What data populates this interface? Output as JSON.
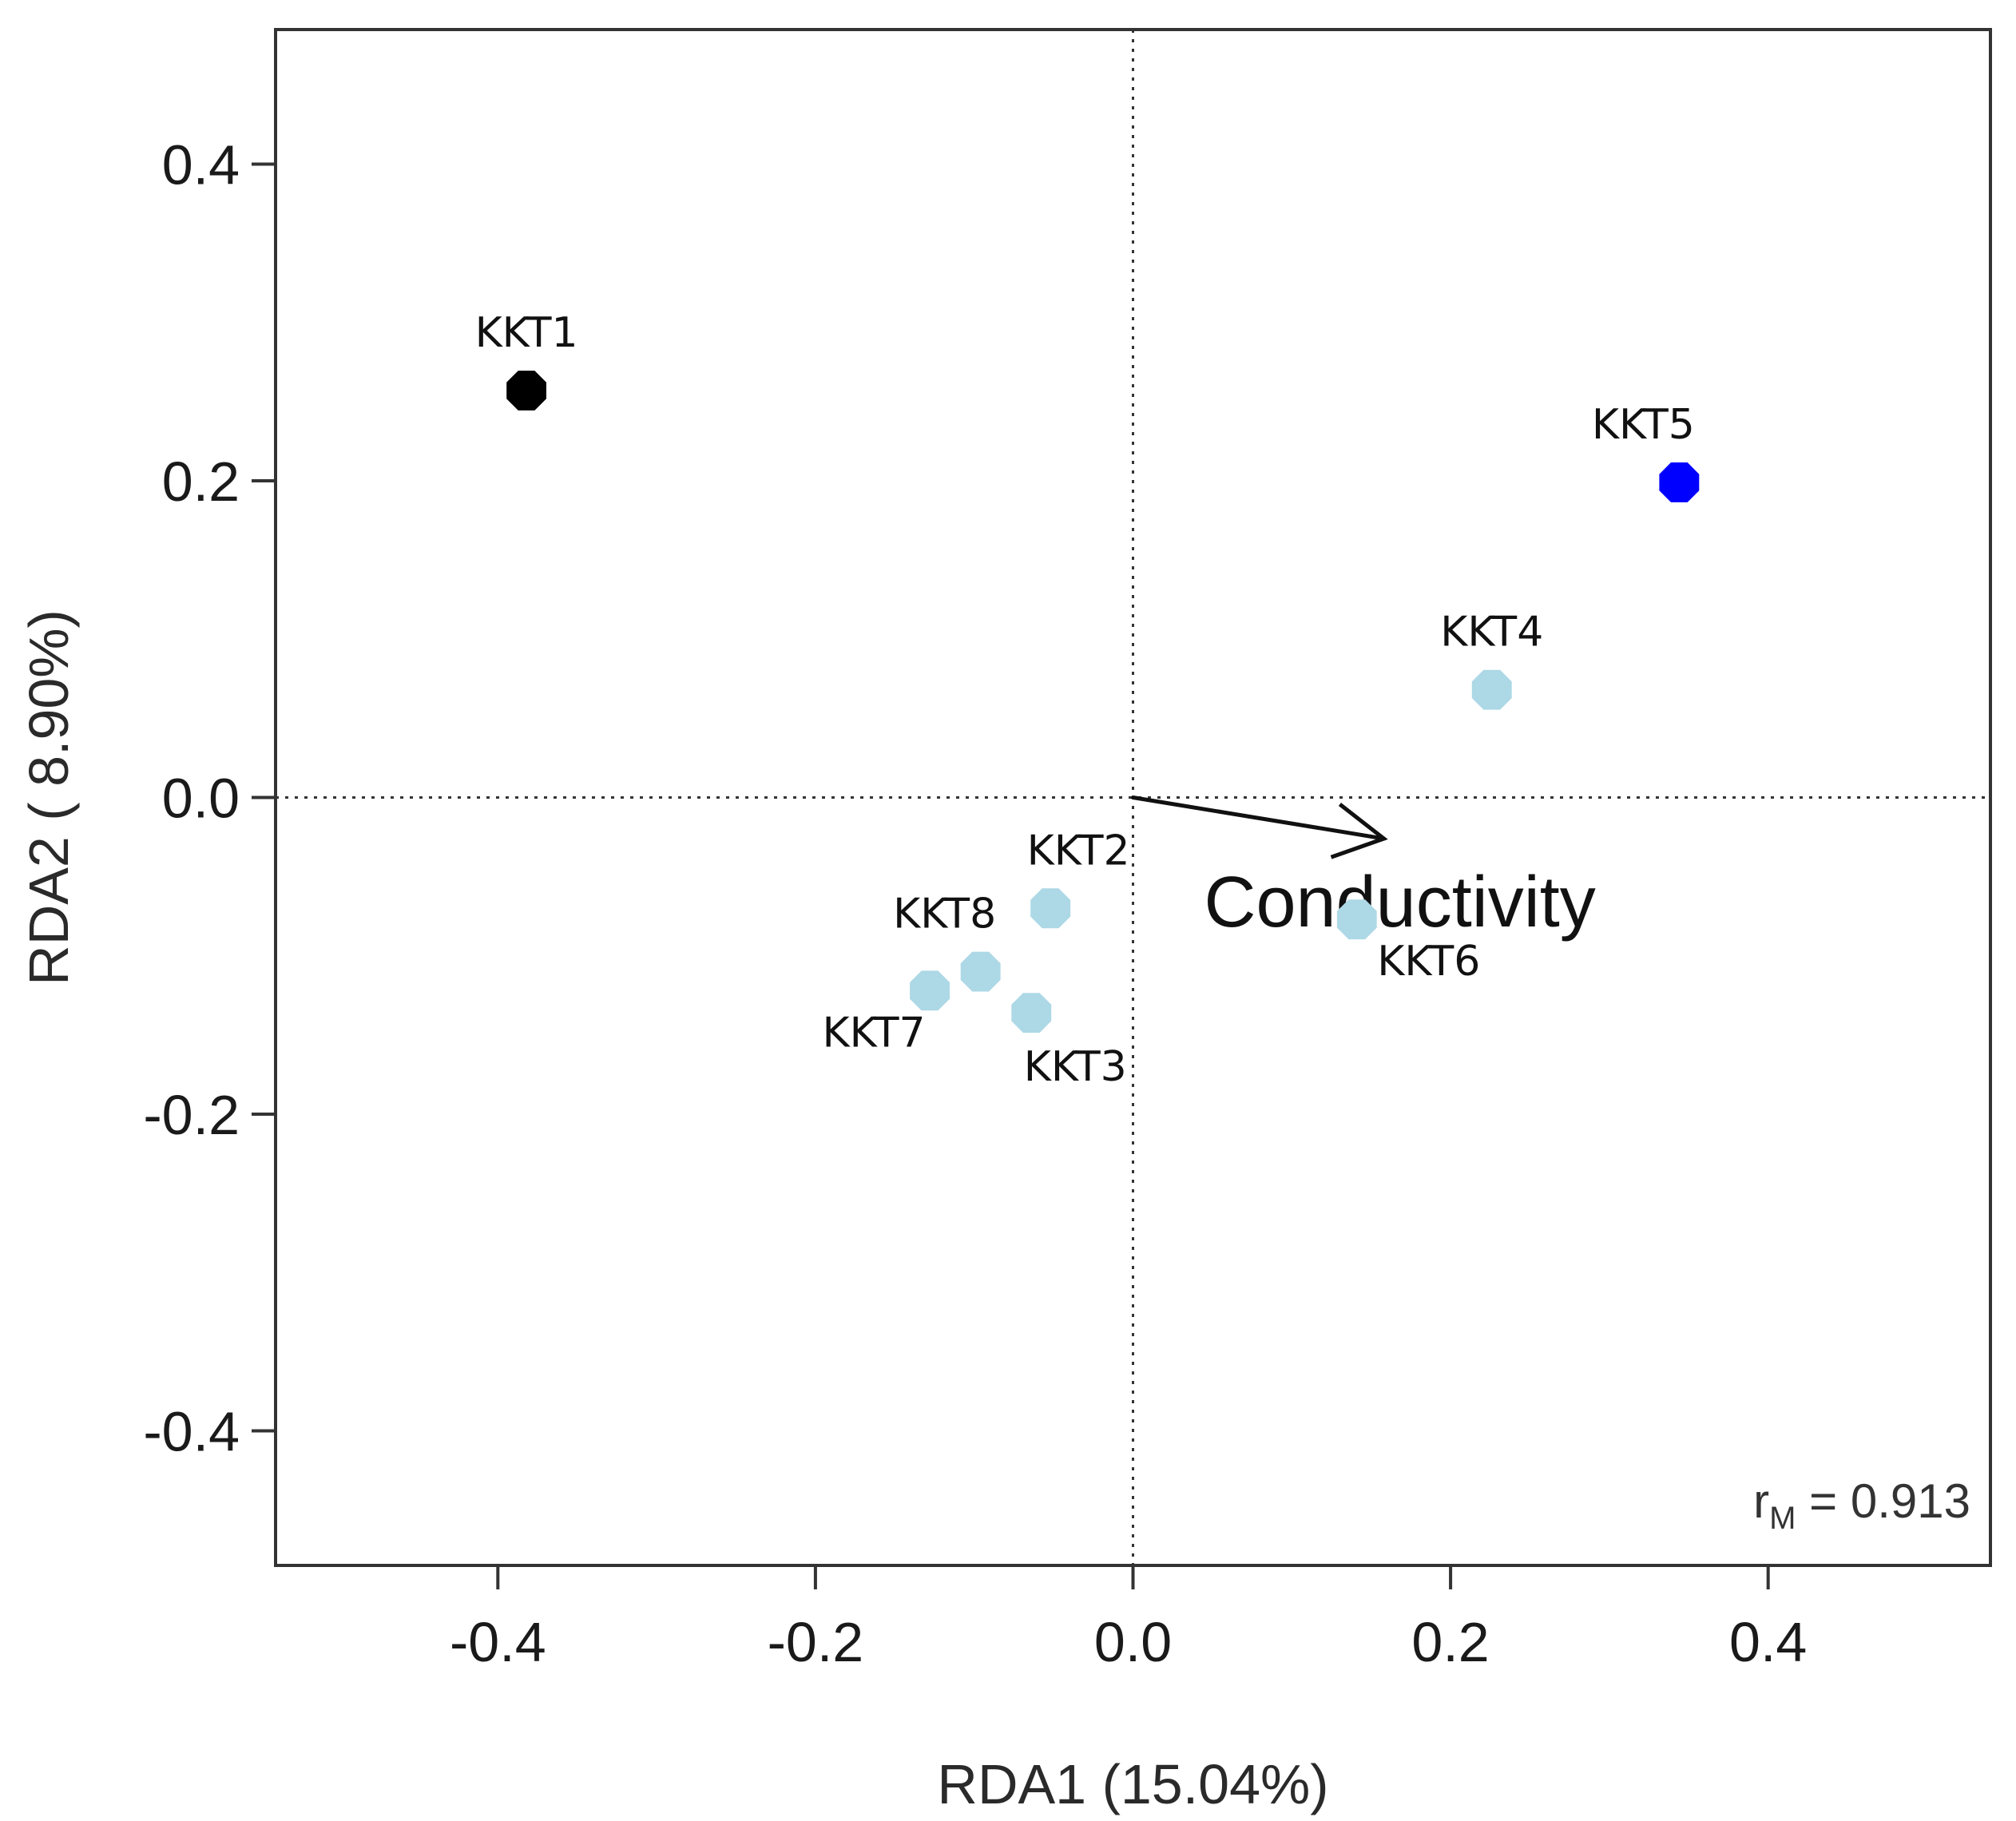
{
  "chart_data": {
    "type": "scatter",
    "title": "",
    "xlabel": "RDA1 (15.04%)",
    "ylabel": "RDA2 ( 8.90%)",
    "xlim": [
      -0.54,
      0.54
    ],
    "ylim": [
      -0.485,
      0.485
    ],
    "x_ticks": [
      -0.4,
      -0.2,
      0.0,
      0.2,
      0.4
    ],
    "x_tick_labels": [
      "-0.4",
      "-0.2",
      "0.0",
      "0.2",
      "0.4"
    ],
    "y_ticks": [
      -0.4,
      -0.2,
      0.0,
      0.2,
      0.4
    ],
    "y_tick_labels": [
      "-0.4",
      "-0.2",
      "0.0",
      "0.2",
      "0.4"
    ],
    "grid": false,
    "reference_lines": {
      "x": 0,
      "y": 0,
      "style": "dotted"
    },
    "points": [
      {
        "label": "KKT1",
        "x": -0.382,
        "y": 0.257,
        "color": "#000000",
        "label_pos": "above"
      },
      {
        "label": "KKT2",
        "x": -0.052,
        "y": -0.07,
        "color": "#add8e6",
        "label_pos": "above-right"
      },
      {
        "label": "KKT3",
        "x": -0.064,
        "y": -0.136,
        "color": "#add8e6",
        "label_pos": "below"
      },
      {
        "label": "KKT4",
        "x": 0.226,
        "y": 0.068,
        "color": "#add8e6",
        "label_pos": "above"
      },
      {
        "label": "KKT5",
        "x": 0.344,
        "y": 0.199,
        "color": "#0000ff",
        "label_pos": "above-left"
      },
      {
        "label": "KKT6",
        "x": 0.141,
        "y": -0.077,
        "color": "#add8e6",
        "label_pos": "below-right"
      },
      {
        "label": "KKT7",
        "x": -0.128,
        "y": -0.122,
        "color": "#add8e6",
        "label_pos": "below-left"
      },
      {
        "label": "KKT8",
        "x": -0.096,
        "y": -0.11,
        "color": "#add8e6",
        "label_pos": "above-left"
      }
    ],
    "vectors": [
      {
        "label": "Conductivity",
        "x": 0.158,
        "y": -0.026
      }
    ],
    "annotation": {
      "symbol": "r",
      "subscript": "M",
      "text": " = 0.913",
      "position": "bottom-right"
    }
  }
}
